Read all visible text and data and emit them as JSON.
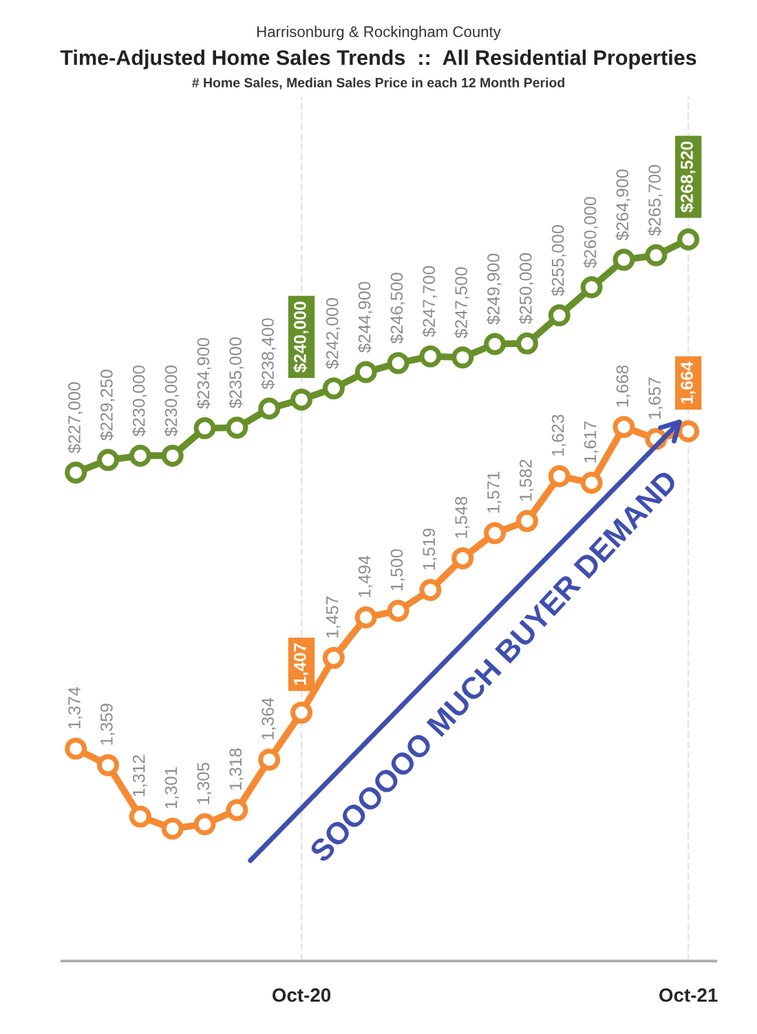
{
  "chart_data": {
    "type": "line",
    "title": "Time-Adjusted Home Sales Trends  ::  All Residential Properties",
    "subtitle": "# Home Sales, Median Sales Price in each 12 Month Period",
    "annotations": [
      "Harrisonburg & Rockingham County",
      "SOOOOOO MUCH BUYER DEMAND"
    ],
    "categories": [
      null,
      null,
      null,
      null,
      null,
      null,
      null,
      "Oct-20",
      null,
      null,
      null,
      null,
      null,
      null,
      null,
      null,
      null,
      null,
      null,
      "Oct-21"
    ],
    "series": [
      {
        "color": "#f58a32",
        "values": [
          1374,
          1359,
          1312,
          1301,
          1305,
          1318,
          1364,
          1407,
          1457,
          1494,
          1500,
          1519,
          1548,
          1571,
          1582,
          1623,
          1617,
          1668,
          1657,
          1664
        ],
        "value_labels": [
          "1,374",
          "1,359",
          "1,312",
          "1,301",
          "1,305",
          "1,318",
          "1,364",
          "1,407",
          "1,457",
          "1,494",
          "1,500",
          "1,519",
          "1,548",
          "1,571",
          "1,582",
          "1,623",
          "1,617",
          "1,668",
          "1,657",
          "1,664"
        ]
      },
      {
        "color": "#67902a",
        "axis": "y2",
        "values": [
          227000,
          229250,
          230000,
          230000,
          234900,
          235000,
          238400,
          240000,
          242000,
          244900,
          246500,
          247700,
          247500,
          249900,
          250000,
          255000,
          260000,
          264900,
          265700,
          268520
        ],
        "value_labels": [
          "$227,000",
          "$229,250",
          "$230,000",
          "$230,000",
          "$234,900",
          "$235,000",
          "$238,400",
          "$240,000",
          "$242,000",
          "$244,900",
          "$246,500",
          "$247,700",
          "$247,500",
          "$249,900",
          "$250,000",
          "$255,000",
          "$260,000",
          "$264,900",
          "$265,700",
          "$268,520"
        ]
      }
    ],
    "ylim": [
      1180,
      1970
    ],
    "y2lim": [
      140000,
      294000
    ],
    "tick_labels": "x",
    "marker": "circle",
    "line_style": "solid",
    "grid": "x",
    "legend": false
  }
}
